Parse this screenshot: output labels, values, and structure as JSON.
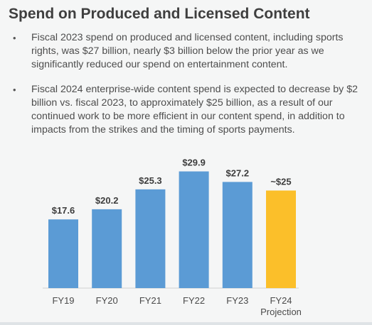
{
  "slide": {
    "title": "Spend on Produced and Licensed Content",
    "bullets": [
      "Fiscal 2023 spend on produced and licensed content, including sports rights, was $27 billion, nearly $3 billion below the prior year as we significantly reduced our spend on entertainment content.",
      "Fiscal 2024 enterprise-wide content spend is expected to decrease by $2 billion vs. fiscal 2023, to approximately $25 billion, as a result of our continued work to be more efficient in our content spend, in addition to impacts from the strikes and the timing of sports payments."
    ],
    "bullet_glyph": "•"
  },
  "chart_data": {
    "type": "bar",
    "categories": [
      "FY19",
      "FY20",
      "FY21",
      "FY22",
      "FY23",
      "FY24 Projection"
    ],
    "values": [
      17.6,
      20.2,
      25.3,
      29.9,
      27.2,
      25
    ],
    "value_labels": [
      "$17.6",
      "$20.2",
      "$25.3",
      "$29.9",
      "$27.2",
      "~$25"
    ],
    "colors": [
      "#5b9bd5",
      "#5b9bd5",
      "#5b9bd5",
      "#5b9bd5",
      "#5b9bd5",
      "#fbbf2a"
    ],
    "ylim": [
      0,
      32
    ],
    "grid": false,
    "legend": "none"
  }
}
